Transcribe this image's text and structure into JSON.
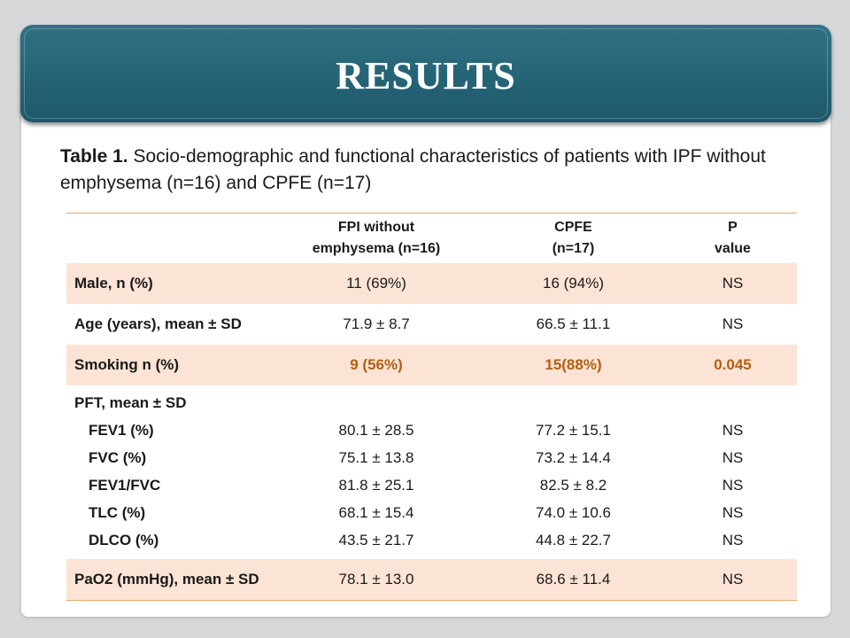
{
  "header": {
    "title": "RESULTS"
  },
  "caption": {
    "label": "Table 1.",
    "text": " Socio-demographic and functional characteristics of patients with IPF without emphysema (n=16) and CPFE (n=17)"
  },
  "table": {
    "columns": [
      {
        "line1": "",
        "line2": ""
      },
      {
        "line1": "FPI without",
        "line2": "emphysema (n=16)"
      },
      {
        "line1": "CPFE",
        "line2": "(n=17)"
      },
      {
        "line1": "P",
        "line2": "value"
      }
    ],
    "rows": [
      {
        "label": "Male, n (%)",
        "fpi": "11 (69%)",
        "cpfe": "16 (94%)",
        "p": "NS"
      },
      {
        "label": "Age (years), mean ± SD",
        "fpi": "71.9 ± 8.7",
        "cpfe": "66.5 ± 11.1",
        "p": "NS"
      },
      {
        "label": "Smoking n (%)",
        "fpi": "9 (56%)",
        "cpfe": "15(88%)",
        "p": "0.045"
      }
    ],
    "pft": {
      "title": "PFT, mean ±  SD",
      "items": [
        {
          "label": "FEV1 (%)",
          "fpi": "80.1 ± 28.5",
          "cpfe": "77.2 ± 15.1",
          "p": "NS"
        },
        {
          "label": "FVC (%)",
          "fpi": "75.1 ± 13.8",
          "cpfe": "73.2 ± 14.4",
          "p": "NS"
        },
        {
          "label": "FEV1/FVC",
          "fpi": "81.8 ± 25.1",
          "cpfe": "82.5 ± 8.2",
          "p": "NS"
        },
        {
          "label": "TLC (%)",
          "fpi": "68.1 ± 15.4",
          "cpfe": "74.0 ± 10.6",
          "p": "NS"
        },
        {
          "label": "DLCO (%)",
          "fpi": "43.5 ± 21.7",
          "cpfe": "44.8 ± 22.7",
          "p": "NS"
        }
      ]
    },
    "last_row": {
      "label": "PaO2 (mmHg), mean ±  SD",
      "fpi": "78.1 ± 13.0",
      "cpfe": "68.6 ± 11.4",
      "p": "NS"
    }
  },
  "colors": {
    "banner": "#1d5869",
    "row_shade": "#fbe4d5",
    "highlight_text": "#b35f12",
    "rule": "#e2a86b"
  }
}
